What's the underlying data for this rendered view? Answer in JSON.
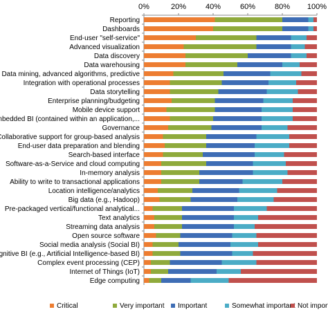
{
  "chart_data": {
    "type": "bar",
    "orientation": "horizontal",
    "stacked": true,
    "percent": true,
    "xlim": [
      0,
      100
    ],
    "x_ticks": [
      "0%",
      "20%",
      "40%",
      "60%",
      "80%",
      "100%"
    ],
    "x_tick_position": "top",
    "legend_position": "bottom",
    "grid": false,
    "categories": [
      "Reporting",
      "Dashboards",
      "End-user \"self-service\"",
      "Advanced visualization",
      "Data discovery",
      "Data warehousing",
      "Data mining, advanced algorithms, predictive",
      "Integration with operational processes",
      "Data storytelling",
      "Enterprise planning/budgeting",
      "Mobile device support",
      "Embedded BI (contained within an application,...",
      "Governance",
      "Collaborative support for group-based analysis",
      "End-user data preparation and blending",
      "Search-based interface",
      "Software-as-a-Service and cloud computing",
      "In-memory analysis",
      "Ability to write to transactional applications",
      "Location intelligence/analytics",
      "Big data (e.g., Hadoop)",
      "Pre-packaged vertical/functional analytical...",
      "Text analytics",
      "Streaming data analysis",
      "Open source software",
      "Social media analysis (Social BI)",
      "Cognitive BI (e.g., Artificial Intelligence-based BI)",
      "Complex event processing (CEP)",
      "Internet of Things (IoT)",
      "Edge computing"
    ],
    "highlight_category": "Location intelligence/analytics",
    "highlight_color": "#7030A0",
    "series": [
      {
        "name": "Critical",
        "color": "#ED7D31",
        "values": [
          41,
          40,
          30,
          23,
          24,
          24,
          17,
          15,
          15,
          16,
          13,
          15,
          14,
          11,
          12,
          11,
          10,
          10,
          10,
          8,
          9,
          5,
          6,
          6,
          7,
          5,
          5,
          4,
          4,
          3
        ]
      },
      {
        "name": "Very important",
        "color": "#8FAA3C",
        "values": [
          39,
          40,
          35,
          42,
          36,
          30,
          29,
          30,
          28,
          25,
          28,
          25,
          25,
          25,
          24,
          23,
          26,
          22,
          22,
          20,
          18,
          17,
          16,
          16,
          14,
          15,
          16,
          11,
          10,
          7
        ]
      },
      {
        "name": "Important",
        "color": "#3E6DB5",
        "values": [
          15,
          15,
          20,
          20,
          25,
          26,
          27,
          27,
          28,
          28,
          27,
          28,
          29,
          29,
          28,
          30,
          27,
          31,
          25,
          27,
          27,
          30,
          30,
          30,
          30,
          30,
          30,
          30,
          28,
          17
        ]
      },
      {
        "name": "Somewhat important",
        "color": "#4BACC6",
        "values": [
          3,
          3,
          9,
          8,
          9,
          10,
          18,
          16,
          18,
          17,
          18,
          18,
          15,
          19,
          20,
          17,
          19,
          20,
          23,
          22,
          21,
          19,
          14,
          12,
          14,
          16,
          12,
          20,
          14,
          22
        ]
      },
      {
        "name": "Not important",
        "color": "#C0504D",
        "values": [
          2,
          2,
          6,
          7,
          6,
          10,
          9,
          12,
          11,
          14,
          14,
          14,
          17,
          16,
          16,
          19,
          18,
          17,
          20,
          23,
          25,
          29,
          34,
          36,
          35,
          34,
          37,
          35,
          44,
          51
        ]
      }
    ]
  }
}
